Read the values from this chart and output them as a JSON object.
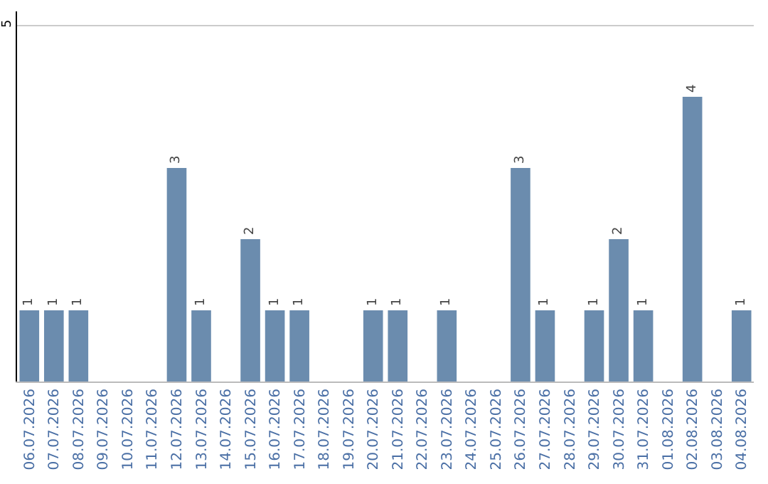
{
  "chart_data": {
    "type": "bar",
    "categories": [
      "06.07.2026",
      "07.07.2026",
      "08.07.2026",
      "09.07.2026",
      "10.07.2026",
      "11.07.2026",
      "12.07.2026",
      "13.07.2026",
      "14.07.2026",
      "15.07.2026",
      "16.07.2026",
      "17.07.2026",
      "18.07.2026",
      "19.07.2026",
      "20.07.2026",
      "21.07.2026",
      "22.07.2026",
      "23.07.2026",
      "24.07.2026",
      "25.07.2026",
      "26.07.2026",
      "27.07.2026",
      "28.07.2026",
      "29.07.2026",
      "30.07.2026",
      "31.07.2026",
      "01.08.2026",
      "02.08.2026",
      "03.08.2026",
      "04.08.2026"
    ],
    "values": [
      1,
      1,
      1,
      0,
      0,
      0,
      3,
      1,
      0,
      2,
      1,
      1,
      0,
      0,
      1,
      1,
      0,
      1,
      0,
      0,
      3,
      1,
      0,
      1,
      2,
      1,
      0,
      4,
      0,
      1
    ],
    "value_labels": [
      "1",
      "1",
      "1",
      null,
      null,
      null,
      "3",
      "1",
      null,
      "2",
      "1",
      "1",
      null,
      null,
      "1",
      "1",
      null,
      "1",
      null,
      null,
      "3",
      "1",
      null,
      "1",
      "2",
      "1",
      null,
      "4",
      null,
      "1"
    ],
    "color": "#6b8cae",
    "ylim": [
      0,
      5.2
    ],
    "yticks": [
      5
    ],
    "grid": "y",
    "legend": false
  }
}
